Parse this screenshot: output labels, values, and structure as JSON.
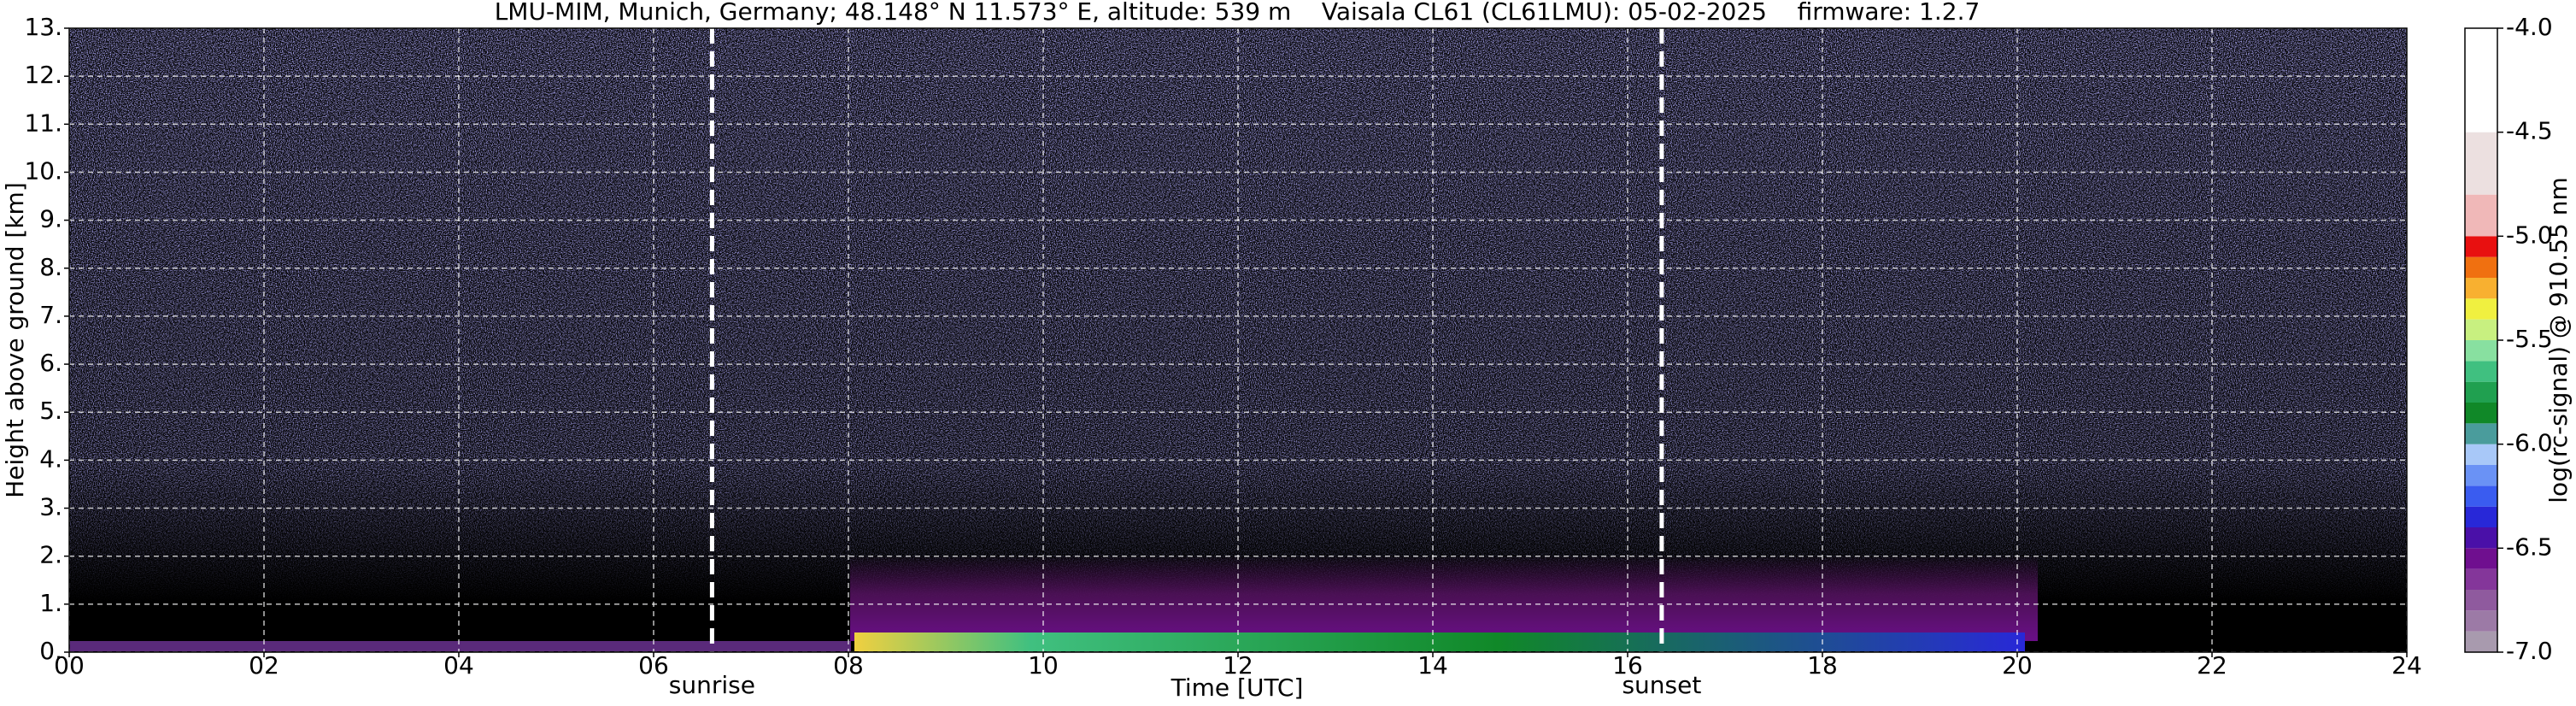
{
  "chart_data": {
    "type": "heatmap",
    "title": "LMU-MIM, Munich, Germany; 48.148° N 11.573° E, altitude: 539 m    Vaisala CL61 (CL61LMU): 05-02-2025    firmware: 1.2.7",
    "xlabel": "Time [UTC]",
    "ylabel": "Height above ground [km]",
    "xlim": [
      0,
      24
    ],
    "xticks": [
      {
        "value": 0,
        "label": "00"
      },
      {
        "value": 2,
        "label": "02"
      },
      {
        "value": 4,
        "label": "04"
      },
      {
        "value": 6,
        "label": "06"
      },
      {
        "value": 8,
        "label": "08"
      },
      10,
      12,
      14,
      16,
      18,
      20,
      22,
      24
    ],
    "ylim": [
      0,
      13
    ],
    "yticks": [
      {
        "value": 0,
        "label": "0."
      },
      {
        "value": 1,
        "label": "1."
      },
      {
        "value": 2,
        "label": "2."
      },
      {
        "value": 3,
        "label": "3."
      },
      {
        "value": 4,
        "label": "4."
      },
      {
        "value": 5,
        "label": "5."
      },
      {
        "value": 6,
        "label": "6."
      },
      {
        "value": 7,
        "label": "7."
      },
      {
        "value": 8,
        "label": "8."
      },
      {
        "value": 9,
        "label": "9."
      },
      {
        "value": 10,
        "label": "10."
      },
      {
        "value": 11,
        "label": "11."
      },
      {
        "value": 12,
        "label": "12."
      },
      {
        "value": 13,
        "label": "13."
      }
    ],
    "grid": true,
    "events": [
      {
        "label": "sunrise",
        "x": 6.6
      },
      {
        "label": "sunset",
        "x": 16.35
      }
    ],
    "colorbar": {
      "label": "log(rc-signal) @ 910.55 nm",
      "lim": [
        -7.0,
        -4.0
      ],
      "ticks": [
        {
          "value": -7.0,
          "label": "-7.0"
        },
        -6.5,
        {
          "value": -6.0,
          "label": "-6.0"
        },
        -5.5,
        {
          "value": -5.0,
          "label": "-5.0"
        },
        -4.5,
        {
          "value": -4.0,
          "label": "-4.0"
        }
      ],
      "levels": [
        -7.0,
        -6.9,
        -6.8,
        -6.7,
        -6.6,
        -6.5,
        -6.4,
        -6.3,
        -6.2,
        -6.1,
        -6.0,
        -5.9,
        -5.8,
        -5.7,
        -5.6,
        -5.5,
        -5.4,
        -5.3,
        -5.2,
        -5.1,
        -5.0,
        -4.8,
        -4.5,
        -4.0
      ],
      "colors": [
        "#a89aae",
        "#9c7aa6",
        "#8f5a9e",
        "#84369a",
        "#6f0f8f",
        "#4a10a8",
        "#2828d8",
        "#3a5cf0",
        "#6a92f5",
        "#a8c8f8",
        "#4a9c9c",
        "#108828",
        "#20a050",
        "#40c080",
        "#88e0a0",
        "#c8f080",
        "#f0f040",
        "#f8b030",
        "#f07010",
        "#e81010",
        "#f0b8b8",
        "#ece0e0",
        "#ffffff"
      ]
    }
  }
}
